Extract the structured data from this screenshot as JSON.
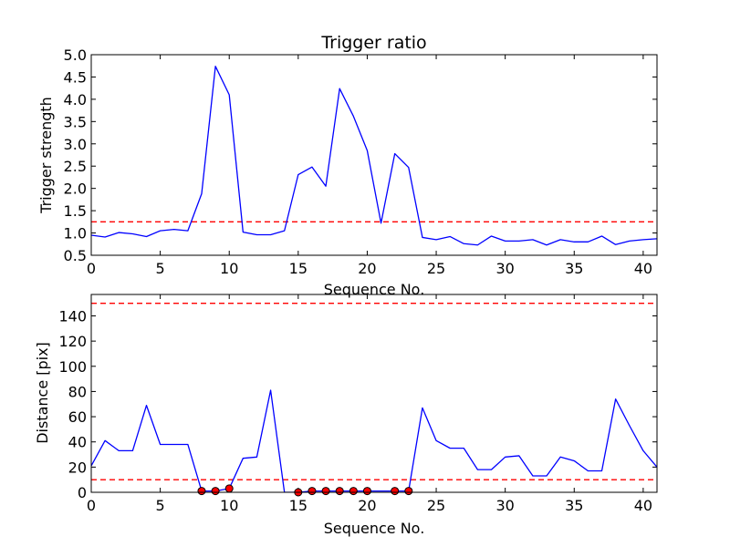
{
  "chart_data": [
    {
      "type": "line",
      "title": "Trigger ratio",
      "xlabel": "Sequence No.",
      "ylabel": "Trigger strength",
      "xlim": [
        0,
        41
      ],
      "ylim": [
        0.5,
        5.0
      ],
      "xticks": [
        0,
        5,
        10,
        15,
        20,
        25,
        30,
        35,
        40
      ],
      "yticks": [
        0.5,
        1.0,
        1.5,
        2.0,
        2.5,
        3.0,
        3.5,
        4.0,
        4.5,
        5.0
      ],
      "ytick_labels": [
        "0.5",
        "1.0",
        "1.5",
        "2.0",
        "2.5",
        "3.0",
        "3.5",
        "4.0",
        "4.5",
        "5.0"
      ],
      "grid": false,
      "series": [
        {
          "color": "#0000ff",
          "x": [
            0,
            1,
            2,
            3,
            4,
            5,
            6,
            7,
            8,
            9,
            10,
            11,
            12,
            13,
            14,
            15,
            16,
            17,
            18,
            19,
            20,
            21,
            22,
            23,
            24,
            25,
            26,
            27,
            28,
            29,
            30,
            31,
            32,
            33,
            34,
            35,
            36,
            37,
            38,
            39,
            40,
            41
          ],
          "y": [
            0.95,
            0.91,
            1.01,
            0.98,
            0.92,
            1.05,
            1.08,
            1.05,
            1.88,
            4.74,
            4.1,
            1.02,
            0.96,
            0.96,
            1.05,
            2.31,
            2.48,
            2.05,
            4.24,
            3.62,
            2.85,
            1.22,
            2.78,
            2.47,
            0.9,
            0.85,
            0.92,
            0.76,
            0.73,
            0.93,
            0.82,
            0.82,
            0.85,
            0.73,
            0.85,
            0.8,
            0.8,
            0.93,
            0.74,
            0.82,
            0.85,
            0.87
          ]
        }
      ],
      "reference_lines": [
        {
          "y": 1.25,
          "color": "#ff0000",
          "style": "dashed"
        }
      ]
    },
    {
      "type": "line",
      "title": "",
      "xlabel": "Sequence No.",
      "ylabel": "Distance [pix]",
      "xlim": [
        0,
        41
      ],
      "ylim": [
        0,
        157
      ],
      "xticks": [
        0,
        5,
        10,
        15,
        20,
        25,
        30,
        35,
        40
      ],
      "yticks": [
        0,
        20,
        40,
        60,
        80,
        100,
        120,
        140
      ],
      "ytick_labels": [
        "0",
        "20",
        "40",
        "60",
        "80",
        "100",
        "120",
        "140"
      ],
      "grid": false,
      "series": [
        {
          "color": "#0000ff",
          "x": [
            0,
            1,
            2,
            3,
            4,
            5,
            6,
            7,
            8,
            9,
            10,
            11,
            12,
            13,
            14,
            15,
            16,
            17,
            18,
            19,
            20,
            21,
            22,
            23,
            24,
            25,
            26,
            27,
            28,
            29,
            30,
            31,
            32,
            33,
            34,
            35,
            36,
            37,
            38,
            39,
            40,
            41
          ],
          "y": [
            21,
            41,
            33,
            33,
            69,
            38,
            38,
            38,
            1,
            1,
            3,
            27,
            28,
            81,
            0,
            0,
            1,
            1,
            1,
            1,
            1,
            1,
            1,
            1,
            67,
            41,
            35,
            35,
            18,
            18,
            28,
            29,
            13,
            13,
            28,
            25,
            17,
            17,
            74,
            53,
            33,
            20
          ]
        }
      ],
      "markers": {
        "color": "#ff0000",
        "x": [
          8,
          9,
          10,
          15,
          16,
          17,
          18,
          19,
          20,
          22,
          23
        ],
        "y": [
          1,
          1,
          3,
          0,
          1,
          1,
          1,
          1,
          1,
          1,
          1
        ]
      },
      "reference_lines": [
        {
          "y": 10,
          "color": "#ff0000",
          "style": "dashed"
        },
        {
          "y": 150,
          "color": "#ff0000",
          "style": "dashed"
        }
      ]
    }
  ]
}
